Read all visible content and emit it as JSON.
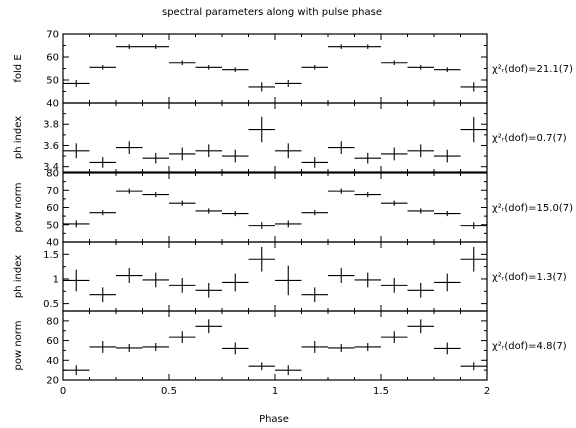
{
  "chart_data": {
    "type": "scatter",
    "title": "spectral parameters along with pulse phase",
    "xlabel": "Phase",
    "xlim": [
      0,
      2
    ],
    "x_ticks": [
      0,
      0.5,
      1,
      1.5,
      2
    ],
    "x_tick_labels": [
      "0",
      "0.5",
      "1",
      "1.5",
      "2"
    ],
    "x": [
      0.0625,
      0.1875,
      0.3125,
      0.4375,
      0.5625,
      0.6875,
      0.8125,
      0.9375,
      1.0625,
      1.1875,
      1.3125,
      1.4375,
      1.5625,
      1.6875,
      1.8125,
      1.9375
    ],
    "x_err": 0.0625,
    "grid": false,
    "panels": [
      {
        "ylabel": "fold E",
        "ylim": [
          40,
          70
        ],
        "y_ticks": [
          40,
          50,
          60,
          70
        ],
        "y_tick_labels": [
          "40",
          "50",
          "60",
          "70"
        ],
        "values": [
          48.5,
          55.5,
          64.5,
          64.5,
          57.5,
          55.5,
          54.5,
          47.0,
          48.5,
          55.5,
          64.5,
          64.5,
          57.5,
          55.5,
          54.5,
          47.0
        ],
        "errors": [
          1.5,
          1.0,
          1.0,
          1.0,
          1.0,
          1.0,
          1.0,
          2.0,
          1.5,
          1.0,
          1.0,
          1.0,
          1.0,
          1.0,
          1.0,
          2.0
        ],
        "stat_label": "χ²ᵣ(dof)=21.1(7)"
      },
      {
        "ylabel": "ph index",
        "ylim": [
          3.35,
          4.0
        ],
        "y_ticks": [
          3.4,
          3.6,
          3.8
        ],
        "y_tick_labels": [
          "3.4",
          "3.6",
          "3.8"
        ],
        "values": [
          3.55,
          3.44,
          3.58,
          3.48,
          3.52,
          3.55,
          3.5,
          3.75,
          3.55,
          3.44,
          3.58,
          3.48,
          3.52,
          3.55,
          3.5,
          3.75
        ],
        "errors": [
          0.07,
          0.05,
          0.06,
          0.05,
          0.06,
          0.06,
          0.06,
          0.12,
          0.07,
          0.05,
          0.06,
          0.05,
          0.06,
          0.06,
          0.06,
          0.12
        ],
        "stat_label": "χ²ᵣ(dof)=0.7(7)"
      },
      {
        "ylabel": "pow norm",
        "ylim": [
          40,
          80
        ],
        "y_ticks": [
          40,
          50,
          60,
          70,
          80
        ],
        "y_tick_labels": [
          "40",
          "50",
          "60",
          "70",
          "80"
        ],
        "values": [
          50.5,
          57.0,
          69.5,
          67.5,
          62.5,
          58.0,
          56.5,
          49.5,
          50.5,
          57.0,
          69.5,
          67.5,
          62.5,
          58.0,
          56.5,
          49.5
        ],
        "errors": [
          2.0,
          1.5,
          1.5,
          1.5,
          1.5,
          1.5,
          1.5,
          2.0,
          2.0,
          1.5,
          1.5,
          1.5,
          1.5,
          1.5,
          1.5,
          2.0
        ],
        "stat_label": "χ²ᵣ(dof)=15.0(7)"
      },
      {
        "ylabel": "ph index",
        "ylim": [
          0.35,
          1.75
        ],
        "y_ticks": [
          0.5,
          1,
          1.5
        ],
        "y_tick_labels": [
          "0.5",
          "1",
          "1.5"
        ],
        "values": [
          0.97,
          0.68,
          1.07,
          0.98,
          0.87,
          0.77,
          0.93,
          1.4,
          0.97,
          0.68,
          1.07,
          0.98,
          0.87,
          0.77,
          0.93,
          1.4
        ],
        "errors": [
          0.22,
          0.15,
          0.15,
          0.15,
          0.15,
          0.15,
          0.18,
          0.25,
          0.3,
          0.15,
          0.15,
          0.15,
          0.15,
          0.15,
          0.18,
          0.25
        ],
        "stat_label": "χ²ᵣ(dof)=1.3(7)"
      },
      {
        "ylabel": "pow norm",
        "ylim": [
          20,
          90
        ],
        "y_ticks": [
          20,
          40,
          60,
          80
        ],
        "y_tick_labels": [
          "20",
          "40",
          "60",
          "80"
        ],
        "values": [
          30.0,
          53.5,
          52.5,
          53.5,
          63.5,
          74.5,
          52.0,
          34.0,
          30.0,
          53.5,
          52.5,
          53.5,
          63.5,
          74.5,
          52.0,
          34.0
        ],
        "errors": [
          5.0,
          6.0,
          4.0,
          4.0,
          6.0,
          7.0,
          6.0,
          4.0,
          5.0,
          6.0,
          4.0,
          4.0,
          6.0,
          7.0,
          6.0,
          4.0
        ],
        "stat_label": "χ²ᵣ(dof)=4.8(7)"
      }
    ]
  },
  "colors": {
    "ink": "#000000",
    "background": "#ffffff"
  }
}
